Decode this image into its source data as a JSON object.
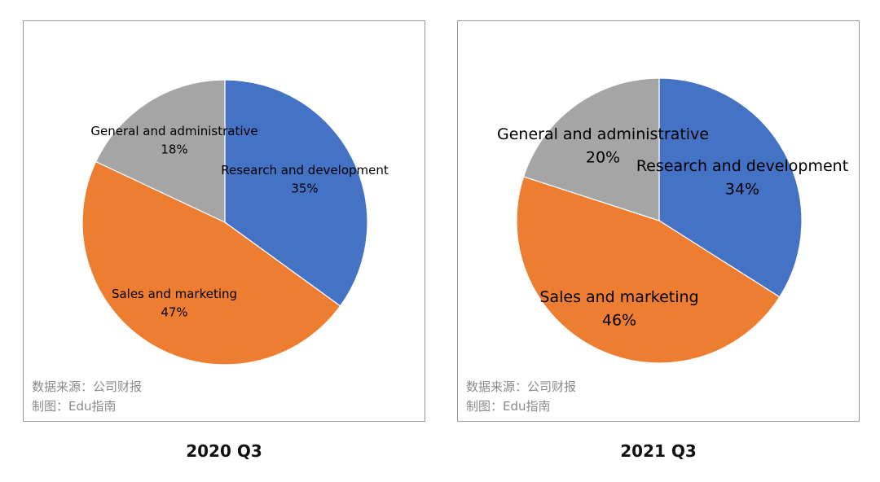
{
  "chart_data": [
    {
      "type": "pie",
      "title": "2020 Q3",
      "slices": [
        {
          "label": "Research and development",
          "value": 35,
          "value_label": "35%",
          "color": "#4472C4"
        },
        {
          "label": "Sales and marketing",
          "value": 47,
          "value_label": "47%",
          "color": "#ED7D31"
        },
        {
          "label": "General and administrative",
          "value": 18,
          "value_label": "18%",
          "color": "#A5A5A5"
        }
      ],
      "source_lines": [
        "数据来源：公司财报",
        "制图：Edu指南"
      ]
    },
    {
      "type": "pie",
      "title": "2021 Q3",
      "slices": [
        {
          "label": "Research and development",
          "value": 34,
          "value_label": "34%",
          "color": "#4472C4"
        },
        {
          "label": "Sales and marketing",
          "value": 46,
          "value_label": "46%",
          "color": "#ED7D31"
        },
        {
          "label": "General and administrative",
          "value": 20,
          "value_label": "20%",
          "color": "#A5A5A5"
        }
      ],
      "source_lines": [
        "数据来源：公司财报",
        "制图：Edu指南"
      ]
    }
  ]
}
